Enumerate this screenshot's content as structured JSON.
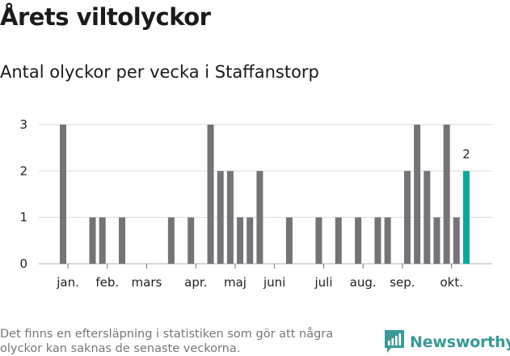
{
  "header": {
    "title": "Årets viltolyckor",
    "subtitle": "Antal olyckor per vecka i Staffanstorp"
  },
  "footer": {
    "note": "Det finns en eftersläpning i statistiken som gör att några olyckor kan saknas de senaste veckorna.",
    "brand": "Newsworthy"
  },
  "colors": {
    "bar": "#747378",
    "highlight": "#11a59b",
    "grid": "#d9d9d9",
    "brand": "#3a9a96"
  },
  "chart_data": {
    "type": "bar",
    "title": "Antal olyckor per vecka i Staffanstorp",
    "xlabel": "",
    "ylabel": "",
    "ylim": [
      0,
      3
    ],
    "yticks": [
      0,
      1,
      2,
      3
    ],
    "grid": true,
    "weeks": [
      1,
      2,
      3,
      4,
      5,
      6,
      7,
      8,
      9,
      10,
      11,
      12,
      13,
      14,
      15,
      16,
      17,
      18,
      19,
      20,
      21,
      22,
      23,
      24,
      25,
      26,
      27,
      28,
      29,
      30,
      31,
      32,
      33,
      34,
      35,
      36,
      37,
      38,
      39,
      40,
      41,
      42
    ],
    "values": [
      3,
      0,
      0,
      1,
      1,
      0,
      1,
      0,
      0,
      0,
      0,
      1,
      0,
      1,
      0,
      3,
      2,
      2,
      1,
      1,
      2,
      0,
      0,
      1,
      0,
      0,
      1,
      0,
      1,
      0,
      1,
      0,
      1,
      1,
      0,
      2,
      3,
      2,
      1,
      3,
      1,
      2
    ],
    "highlight_last": true,
    "last_value_label": "2",
    "month_labels": [
      {
        "label": "jan.",
        "week": 1.5
      },
      {
        "label": "feb.",
        "week": 5.5
      },
      {
        "label": "mars",
        "week": 9.5
      },
      {
        "label": "apr.",
        "week": 14.5
      },
      {
        "label": "maj",
        "week": 18.5
      },
      {
        "label": "juni",
        "week": 22.5
      },
      {
        "label": "juli",
        "week": 27.5
      },
      {
        "label": "aug.",
        "week": 31.5
      },
      {
        "label": "sep.",
        "week": 35.5
      },
      {
        "label": "okt.",
        "week": 40.5
      }
    ]
  }
}
